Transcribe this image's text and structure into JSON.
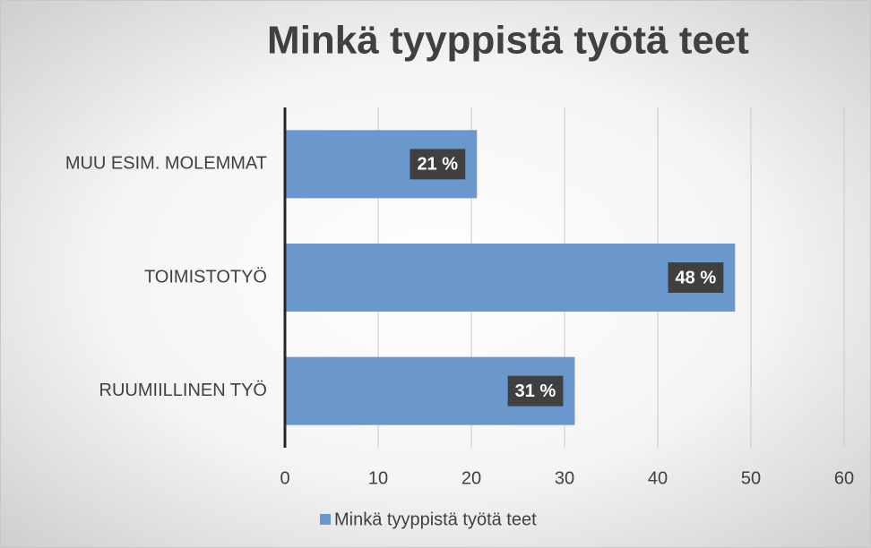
{
  "chart_data": {
    "type": "bar",
    "orientation": "horizontal",
    "title": "Minkä tyyppistä työtä teet",
    "categories": [
      "MUU ESIM. MOLEMMAT",
      "TOIMISTOTYÖ",
      "RUUMIILLINEN TYÖ"
    ],
    "series": [
      {
        "name": "Minkä tyyppistä työtä teet",
        "color": "#6a97cc",
        "values": [
          20.6,
          48.3,
          31.1
        ],
        "value_labels": [
          "21 %",
          "48 %",
          "31 %"
        ]
      }
    ],
    "xlim": [
      0,
      60
    ],
    "xticks": [
      0,
      10,
      20,
      30,
      40,
      50,
      60
    ],
    "grid": true,
    "legend": "bottom"
  }
}
